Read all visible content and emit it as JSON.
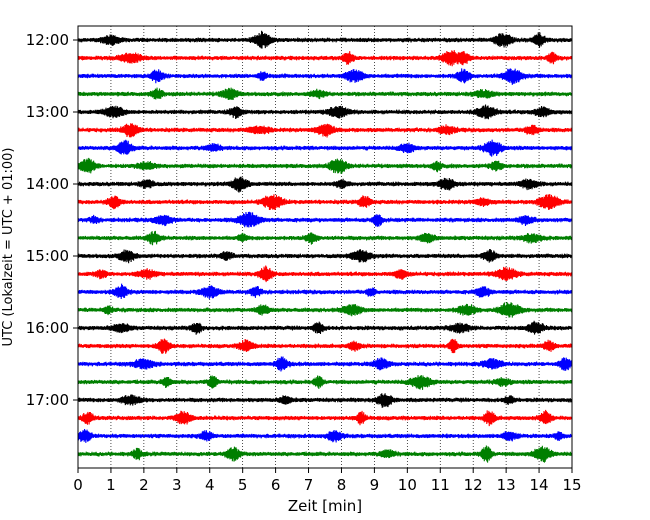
{
  "chart_data": {
    "type": "line",
    "title": "",
    "xlabel": "Zeit  [min]",
    "ylabel": "UTC (Lokalzeit = UTC + 01:00)",
    "xlim": [
      0,
      15
    ],
    "x_ticks": [
      "0",
      "1",
      "2",
      "3",
      "4",
      "5",
      "6",
      "7",
      "8",
      "9",
      "10",
      "11",
      "12",
      "13",
      "14",
      "15"
    ],
    "y_ticks": [
      "12:00",
      "13:00",
      "14:00",
      "15:00",
      "16:00",
      "17:00"
    ],
    "y_tick_rows": [
      0,
      4,
      8,
      12,
      16,
      20
    ],
    "grid": "vertical dotted lines at each minute",
    "trace_count": 24,
    "trace_interval_minutes": 15,
    "trace_colors": [
      "#000000",
      "#ff0000",
      "#0000ff",
      "#007f00"
    ],
    "series": [
      {
        "start": "12:00",
        "color": "black",
        "bursts": [
          1.0,
          5.6,
          12.9,
          14.0
        ]
      },
      {
        "start": "12:15",
        "color": "red",
        "bursts": [
          1.6,
          8.2,
          11.3,
          11.7,
          14.4
        ]
      },
      {
        "start": "12:30",
        "color": "blue",
        "bursts": [
          2.4,
          5.6,
          8.4,
          11.7,
          13.2
        ]
      },
      {
        "start": "12:45",
        "color": "green",
        "bursts": [
          2.4,
          4.6,
          7.3,
          12.3
        ]
      },
      {
        "start": "13:00",
        "color": "black",
        "bursts": [
          1.1,
          4.8,
          7.9,
          12.4,
          14.1
        ]
      },
      {
        "start": "13:15",
        "color": "red",
        "bursts": [
          1.6,
          5.5,
          7.5,
          11.2,
          13.8
        ]
      },
      {
        "start": "13:30",
        "color": "blue",
        "bursts": [
          1.4,
          4.1,
          10.0,
          12.6
        ]
      },
      {
        "start": "13:45",
        "color": "green",
        "bursts": [
          0.3,
          2.1,
          7.9,
          10.9,
          12.7
        ]
      },
      {
        "start": "14:00",
        "color": "black",
        "bursts": [
          2.1,
          4.9,
          8.0,
          11.2,
          13.7
        ]
      },
      {
        "start": "14:15",
        "color": "red",
        "bursts": [
          1.1,
          5.9,
          8.7,
          12.3,
          14.3
        ]
      },
      {
        "start": "14:30",
        "color": "blue",
        "bursts": [
          0.5,
          2.6,
          5.2,
          9.1,
          13.6
        ]
      },
      {
        "start": "14:45",
        "color": "green",
        "bursts": [
          2.3,
          5.0,
          7.1,
          10.6,
          13.8
        ]
      },
      {
        "start": "15:00",
        "color": "black",
        "bursts": [
          1.5,
          4.5,
          8.6,
          12.5
        ]
      },
      {
        "start": "15:15",
        "color": "red",
        "bursts": [
          0.7,
          2.1,
          5.7,
          9.8,
          13.0
        ]
      },
      {
        "start": "15:30",
        "color": "blue",
        "bursts": [
          1.3,
          4.0,
          5.4,
          8.9,
          12.3
        ]
      },
      {
        "start": "15:45",
        "color": "green",
        "bursts": [
          0.9,
          5.6,
          8.3,
          11.8,
          13.1
        ]
      },
      {
        "start": "16:00",
        "color": "black",
        "bursts": [
          1.3,
          3.6,
          7.3,
          11.6,
          13.9
        ]
      },
      {
        "start": "16:15",
        "color": "red",
        "bursts": [
          2.6,
          5.1,
          8.4,
          11.4,
          14.3
        ]
      },
      {
        "start": "16:30",
        "color": "blue",
        "bursts": [
          2.0,
          6.2,
          9.2,
          12.6,
          14.8
        ]
      },
      {
        "start": "16:45",
        "color": "green",
        "bursts": [
          2.7,
          4.1,
          7.3,
          10.4,
          12.9
        ]
      },
      {
        "start": "17:00",
        "color": "black",
        "bursts": [
          1.6,
          6.3,
          9.3,
          13.1
        ]
      },
      {
        "start": "17:15",
        "color": "red",
        "bursts": [
          0.3,
          3.2,
          8.6,
          12.5,
          14.2
        ]
      },
      {
        "start": "17:30",
        "color": "blue",
        "bursts": [
          0.2,
          3.9,
          7.8,
          13.1,
          14.6
        ]
      },
      {
        "start": "17:45",
        "color": "green",
        "bursts": [
          1.8,
          4.7,
          9.4,
          12.4,
          14.1
        ]
      }
    ]
  }
}
